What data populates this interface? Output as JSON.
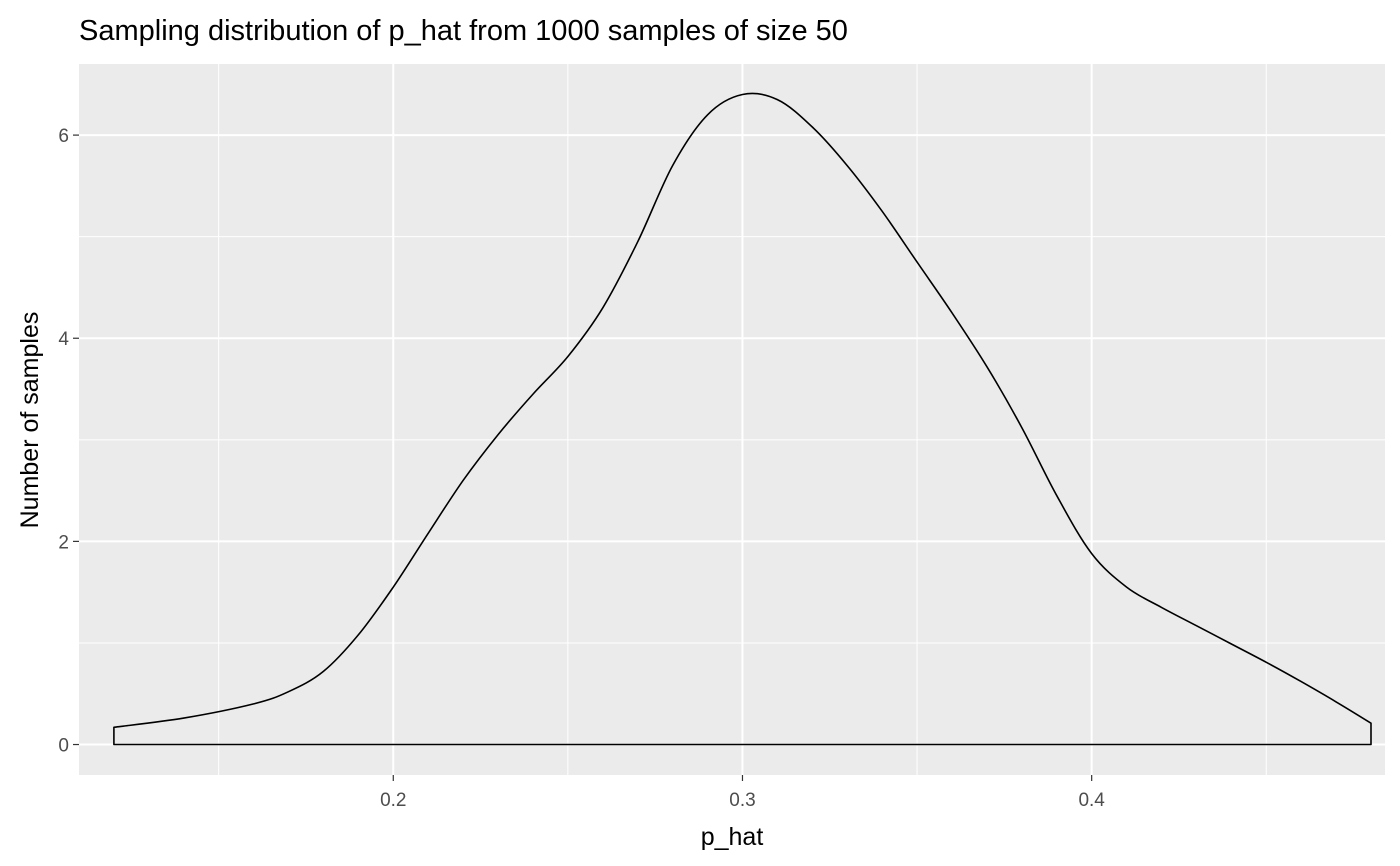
{
  "chart_data": {
    "type": "area",
    "title": "Sampling distribution of p_hat from 1000 samples of size 50",
    "xlabel": "p_hat",
    "ylabel": "Number of samples",
    "xlim": [
      0.11,
      0.484
    ],
    "ylim": [
      -0.3,
      6.7
    ],
    "x_ticks": [
      0.2,
      0.3,
      0.4
    ],
    "x_tick_labels": [
      "0.2",
      "0.3",
      "0.4"
    ],
    "x_minor_ticks": [
      0.15,
      0.25,
      0.35,
      0.45
    ],
    "y_ticks": [
      0,
      2,
      4,
      6
    ],
    "y_tick_labels": [
      "0",
      "2",
      "4",
      "6"
    ],
    "y_minor_ticks": [
      1,
      3,
      5
    ],
    "grid": true,
    "legend": "none",
    "colors": {
      "panel_background": "#ebebeb",
      "grid_line": "#ffffff",
      "outline": "#000000",
      "fill": "none",
      "tick_text": "#4d4d4d"
    },
    "series": [
      {
        "x": [
          0.12,
          0.14,
          0.16,
          0.17,
          0.18,
          0.19,
          0.2,
          0.21,
          0.22,
          0.23,
          0.24,
          0.25,
          0.26,
          0.27,
          0.28,
          0.29,
          0.3,
          0.31,
          0.32,
          0.33,
          0.34,
          0.35,
          0.36,
          0.37,
          0.38,
          0.39,
          0.4,
          0.41,
          0.42,
          0.43,
          0.44,
          0.45,
          0.46,
          0.47,
          0.48
        ],
        "values": [
          0.17,
          0.26,
          0.4,
          0.52,
          0.72,
          1.08,
          1.55,
          2.08,
          2.6,
          3.05,
          3.45,
          3.82,
          4.3,
          4.95,
          5.7,
          6.2,
          6.4,
          6.35,
          6.08,
          5.7,
          5.25,
          4.75,
          4.25,
          3.72,
          3.12,
          2.45,
          1.88,
          1.55,
          1.35,
          1.17,
          0.99,
          0.81,
          0.62,
          0.42,
          0.21
        ]
      }
    ]
  }
}
